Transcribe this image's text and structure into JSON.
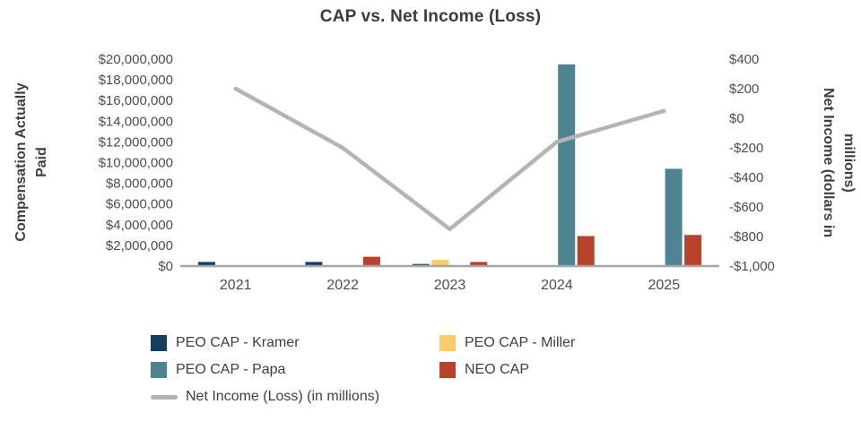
{
  "title": "CAP vs. Net Income (Loss)",
  "chart_data": {
    "type": "bar+line",
    "categories": [
      "2021",
      "2022",
      "2023",
      "2024",
      "2025"
    ],
    "bar_series": [
      {
        "name": "PEO CAP - Kramer",
        "color": "#163f5c",
        "values": [
          400000,
          400000,
          200000,
          0,
          0
        ]
      },
      {
        "name": "PEO CAP - Miller",
        "color": "#f9cb6c",
        "values": [
          0,
          0,
          600000,
          0,
          0
        ]
      },
      {
        "name": "PEO CAP - Papa",
        "color": "#4e8492",
        "values": [
          0,
          0,
          0,
          19500000,
          9400000
        ]
      },
      {
        "name": "NEO CAP",
        "color": "#b5432c",
        "values": [
          0,
          900000,
          400000,
          2900000,
          3000000
        ]
      }
    ],
    "line_series": {
      "name": "Net Income (Loss) (in millions)",
      "color": "#b4b4b4",
      "values": [
        200,
        -200,
        -750,
        -160,
        50
      ]
    },
    "left_axis": {
      "title": "Compensation Actually Paid",
      "title_line1": "Compensation Actually",
      "title_line2": "Paid",
      "min": 0,
      "max": 20000000,
      "step": 2000000,
      "tick_labels": [
        "$0",
        "$2,000,000",
        "$4,000,000",
        "$6,000,000",
        "$8,000,000",
        "$10,000,000",
        "$12,000,000",
        "$14,000,000",
        "$16,000,000",
        "$18,000,000",
        "$20,000,000"
      ]
    },
    "right_axis": {
      "title": "Net Income (dollars in millions)",
      "title_line1": "Net Income (dollars in",
      "title_line2": "millions)",
      "min": -1000,
      "max": 400,
      "step": 200,
      "tick_labels": [
        "-$1,000",
        "-$800",
        "-$600",
        "-$400",
        "-$200",
        "$0",
        "$200",
        "$400"
      ]
    },
    "axis_line_color": "#a6a6a6",
    "legend_position": "bottom",
    "grid": false
  }
}
